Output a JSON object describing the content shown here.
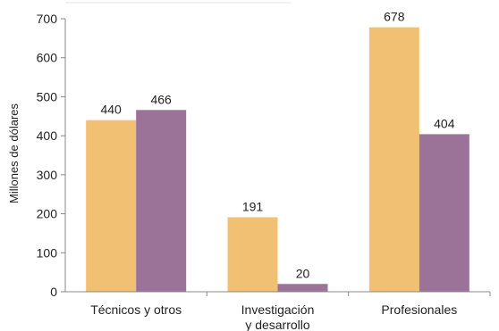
{
  "chart_data": {
    "type": "bar",
    "categories": [
      "Técnicos y otros",
      "Investigación\ny desarrollo",
      "Profesionales"
    ],
    "series": [
      {
        "values": [
          440,
          191,
          678
        ],
        "color": "#f2c073"
      },
      {
        "values": [
          466,
          20,
          404
        ],
        "color": "#9b7399"
      }
    ],
    "ylabel": "Millones de dólares",
    "ylim": [
      0,
      700
    ],
    "yticks": [
      0,
      100,
      200,
      300,
      400,
      500,
      600,
      700
    ],
    "grid": false,
    "legend": "none"
  }
}
